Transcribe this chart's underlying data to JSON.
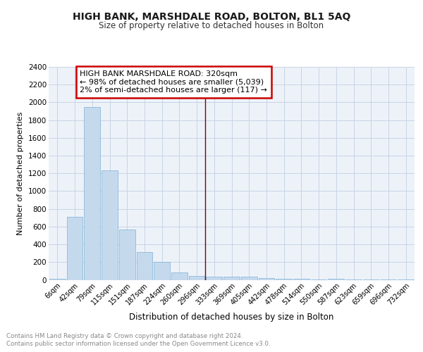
{
  "title": "HIGH BANK, MARSHDALE ROAD, BOLTON, BL1 5AQ",
  "subtitle": "Size of property relative to detached houses in Bolton",
  "xlabel": "Distribution of detached houses by size in Bolton",
  "ylabel": "Number of detached properties",
  "categories": [
    "6sqm",
    "42sqm",
    "79sqm",
    "115sqm",
    "151sqm",
    "187sqm",
    "224sqm",
    "260sqm",
    "296sqm",
    "333sqm",
    "369sqm",
    "405sqm",
    "442sqm",
    "478sqm",
    "514sqm",
    "550sqm",
    "587sqm",
    "623sqm",
    "659sqm",
    "696sqm",
    "732sqm"
  ],
  "values": [
    15,
    710,
    1950,
    1230,
    570,
    310,
    200,
    85,
    45,
    35,
    35,
    35,
    20,
    15,
    10,
    5,
    15,
    5,
    5,
    5,
    5
  ],
  "bar_color": "#c5d9ed",
  "bar_edge_color": "#7fb0d4",
  "ylim": [
    0,
    2400
  ],
  "yticks": [
    0,
    200,
    400,
    600,
    800,
    1000,
    1200,
    1400,
    1600,
    1800,
    2000,
    2200,
    2400
  ],
  "property_line_x": 8.5,
  "property_line_color": "#800000",
  "annotation_lines": [
    "HIGH BANK MARSHDALE ROAD: 320sqm",
    "← 98% of detached houses are smaller (5,039)",
    "2% of semi-detached houses are larger (117) →"
  ],
  "annotation_box_edge": "#cc0000",
  "grid_color": "#c8d4e4",
  "footer_line1": "Contains HM Land Registry data © Crown copyright and database right 2024.",
  "footer_line2": "Contains public sector information licensed under the Open Government Licence v3.0.",
  "background_color": "#edf2f9"
}
